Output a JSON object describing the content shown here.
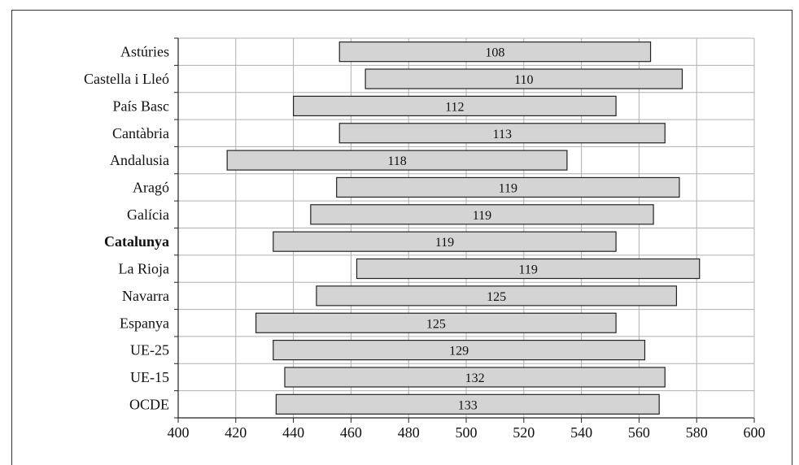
{
  "chart_data": {
    "type": "bar",
    "orientation": "horizontal",
    "subtype": "range (floating bars)",
    "title": "",
    "xlabel": "",
    "ylabel": "",
    "xlim": [
      400,
      600
    ],
    "xticks": [
      400,
      420,
      440,
      460,
      480,
      500,
      520,
      540,
      560,
      580,
      600
    ],
    "grid": true,
    "categories": [
      "Astúries",
      "Castella i Lleó",
      "País Basc",
      "Cantàbria",
      "Andalusia",
      "Aragó",
      "Galícia",
      "Catalunya",
      "La Rioja",
      "Navarra",
      "Espanya",
      "UE-25",
      "UE-15",
      "OCDE"
    ],
    "highlight": "Catalunya",
    "bars": [
      {
        "category": "Astúries",
        "start": 456,
        "end": 564,
        "label": "108"
      },
      {
        "category": "Castella i Lleó",
        "start": 465,
        "end": 575,
        "label": "110"
      },
      {
        "category": "País Basc",
        "start": 440,
        "end": 552,
        "label": "112"
      },
      {
        "category": "Cantàbria",
        "start": 456,
        "end": 569,
        "label": "113"
      },
      {
        "category": "Andalusia",
        "start": 417,
        "end": 535,
        "label": "118"
      },
      {
        "category": "Aragó",
        "start": 455,
        "end": 574,
        "label": "119"
      },
      {
        "category": "Galícia",
        "start": 446,
        "end": 565,
        "label": "119"
      },
      {
        "category": "Catalunya",
        "start": 433,
        "end": 552,
        "label": "119"
      },
      {
        "category": "La Rioja",
        "start": 462,
        "end": 581,
        "label": "119"
      },
      {
        "category": "Navarra",
        "start": 448,
        "end": 573,
        "label": "125"
      },
      {
        "category": "Espanya",
        "start": 427,
        "end": 552,
        "label": "125"
      },
      {
        "category": "UE-25",
        "start": 433,
        "end": 562,
        "label": "129"
      },
      {
        "category": "UE-15",
        "start": 437,
        "end": 569,
        "label": "132"
      },
      {
        "category": "OCDE",
        "start": 434,
        "end": 567,
        "label": "133"
      }
    ],
    "bar_fill": "#d4d4d4",
    "bar_stroke": "#222222",
    "grid_color": "#b0b0b0"
  }
}
